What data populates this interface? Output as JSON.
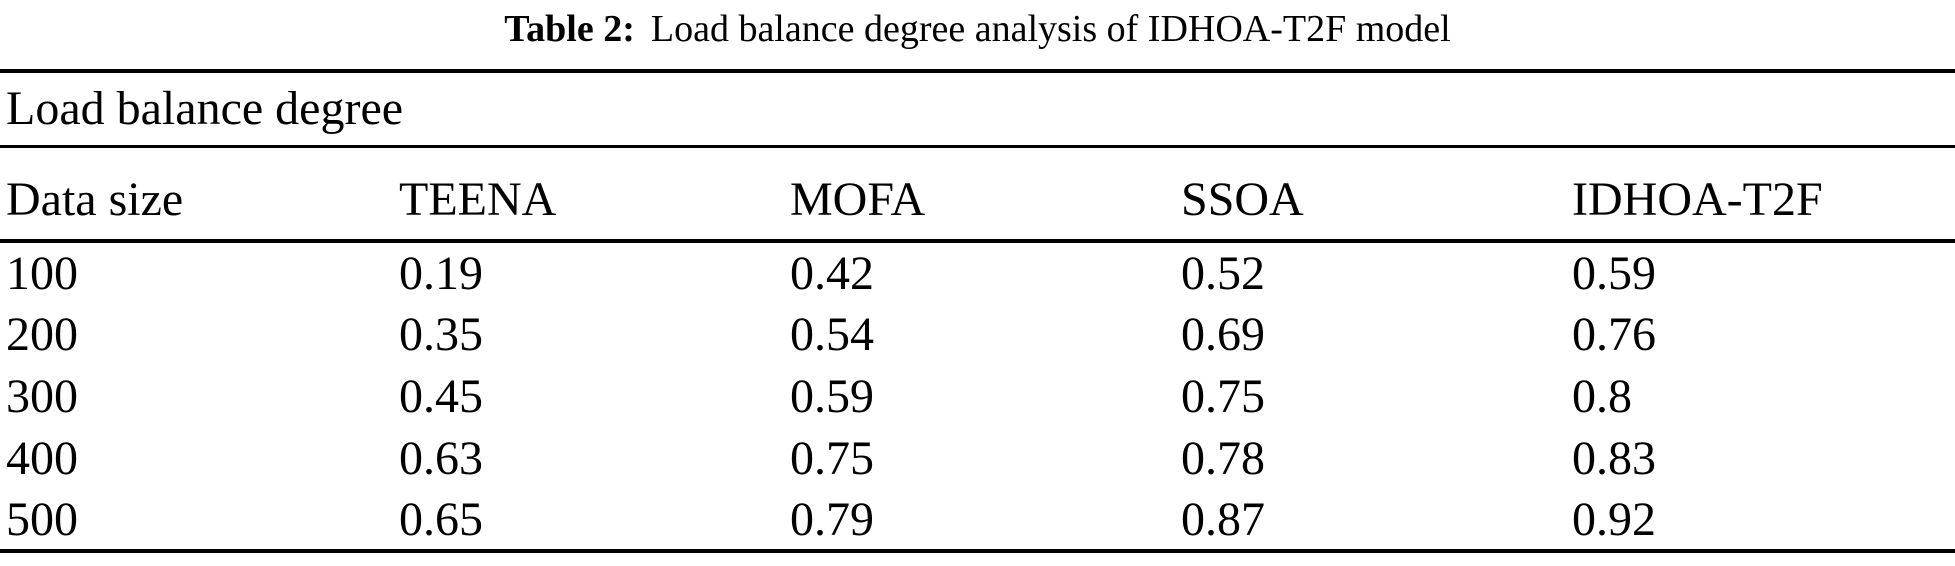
{
  "caption": {
    "label": "Table 2:",
    "text": "Load balance degree analysis of IDHOA-T2F model"
  },
  "table": {
    "group_header": "Load balance degree",
    "columns": [
      "Data size",
      "TEENA",
      "MOFA",
      "SSOA",
      "IDHOA-T2F"
    ],
    "rows": [
      [
        "100",
        "0.19",
        "0.42",
        "0.52",
        "0.59"
      ],
      [
        "200",
        "0.35",
        "0.54",
        "0.69",
        "0.76"
      ],
      [
        "300",
        "0.45",
        "0.59",
        "0.75",
        "0.8"
      ],
      [
        "400",
        "0.63",
        "0.75",
        "0.78",
        "0.83"
      ],
      [
        "500",
        "0.65",
        "0.79",
        "0.87",
        "0.92"
      ]
    ]
  },
  "colors": {
    "text": "#000000",
    "background": "#ffffff",
    "rule": "#000000"
  }
}
